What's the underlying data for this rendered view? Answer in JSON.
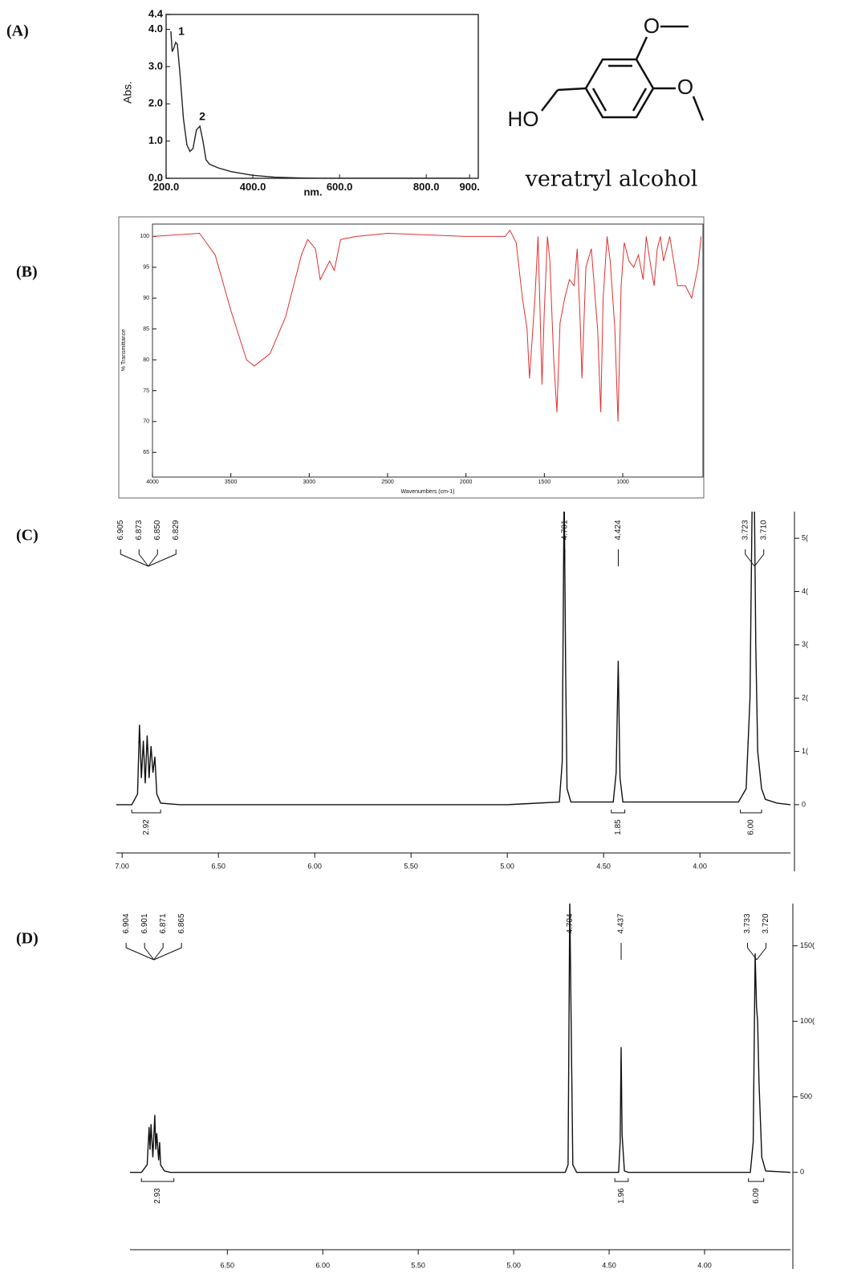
{
  "panel_labels": [
    "(A)",
    "(B)",
    "(C)",
    "(D)"
  ],
  "structure": {
    "labels": [
      "HO",
      "O",
      "O"
    ],
    "name": "veratryl alcohol"
  },
  "chart_data": [
    {
      "type": "line",
      "frame": "box",
      "x_label": "nm.",
      "y_label": "Abs.",
      "color": "#222222",
      "annotations": [
        "1",
        "2"
      ],
      "xlim": [
        200,
        920
      ],
      "ylim": [
        0,
        4.4
      ],
      "xticks": [
        {
          "value": 200,
          "label": "200.0"
        },
        {
          "value": 400,
          "label": "400.0"
        },
        {
          "value": 600,
          "label": "600.0"
        },
        {
          "value": 800,
          "label": "800.0"
        },
        {
          "value": 900,
          "label": "900."
        }
      ],
      "yticks": [
        {
          "value": 0,
          "label": "0.0"
        },
        {
          "value": 1,
          "label": "1.0"
        },
        {
          "value": 2,
          "label": "2.0"
        },
        {
          "value": 3,
          "label": "3.0"
        },
        {
          "value": 4,
          "label": "4.0"
        },
        4.4
      ],
      "x": [
        211,
        214,
        218,
        222,
        226,
        232,
        240,
        248,
        255,
        262,
        270,
        278,
        285,
        292,
        300,
        320,
        350,
        400,
        450,
        500,
        550,
        900
      ],
      "values": [
        3.95,
        3.4,
        3.5,
        3.65,
        3.6,
        2.8,
        1.6,
        0.9,
        0.72,
        0.8,
        1.3,
        1.4,
        1.0,
        0.5,
        0.38,
        0.28,
        0.18,
        0.08,
        0.03,
        0.01,
        0,
        0
      ]
    },
    {
      "type": "line",
      "frame": "box",
      "x_label": "Wavenumbers (cm-1)",
      "y_label": "% Transmittance",
      "color": "#e03030",
      "xlim": [
        4000,
        488
      ],
      "ylim": [
        61,
        102
      ],
      "xticks": [
        4000,
        3500,
        3000,
        2500,
        2000,
        1500,
        1000
      ],
      "yticks": [
        65,
        70,
        75,
        80,
        85,
        90,
        95,
        100
      ],
      "x": [
        4000,
        3700,
        3600,
        3500,
        3400,
        3350,
        3250,
        3150,
        3050,
        3010,
        2960,
        2930,
        2900,
        2870,
        2840,
        2800,
        2700,
        2500,
        2000,
        1750,
        1720,
        1680,
        1640,
        1610,
        1595,
        1560,
        1540,
        1515,
        1500,
        1480,
        1465,
        1440,
        1420,
        1400,
        1370,
        1340,
        1310,
        1290,
        1270,
        1260,
        1235,
        1200,
        1160,
        1140,
        1125,
        1100,
        1080,
        1050,
        1030,
        1010,
        990,
        960,
        930,
        900,
        870,
        850,
        820,
        800,
        780,
        760,
        740,
        700,
        650,
        600,
        560,
        520,
        500
      ],
      "values": [
        100,
        100.5,
        97,
        88,
        80,
        79,
        81,
        87,
        97,
        99.5,
        98,
        93,
        94.5,
        96,
        94.5,
        99.5,
        100,
        100.5,
        100,
        100,
        101,
        99,
        90,
        85,
        77,
        90,
        100,
        76,
        88,
        100,
        96,
        80,
        71.5,
        86,
        90,
        93,
        92,
        98,
        85,
        77,
        95,
        98,
        85,
        71.5,
        90,
        100,
        96,
        85,
        70,
        92,
        99,
        96,
        95,
        97,
        93,
        100,
        95,
        92,
        98,
        100,
        96,
        100,
        92,
        92,
        90,
        95,
        100
      ]
    },
    {
      "type": "nmr",
      "frame": "axes",
      "color": "#111111",
      "peak_labels": [
        "6.905",
        "6.873",
        "6.850",
        "6.829",
        "4.701",
        "4.424",
        "3.723",
        "3.710"
      ],
      "integrals": [
        {
          "label": "2.92",
          "from": 6.95,
          "to": 6.8
        },
        {
          "label": "1.85",
          "from": 4.46,
          "to": 4.39
        },
        {
          "label": "6.00",
          "from": 3.79,
          "to": 3.68
        }
      ],
      "xlim": [
        7.03,
        3.53
      ],
      "ylim": [
        -8,
        55
      ],
      "xticks": [
        {
          "value": 7,
          "label": "7.00"
        },
        {
          "value": 6.5,
          "label": "6.50"
        },
        {
          "value": 6,
          "label": "6.00"
        },
        {
          "value": 5.5,
          "label": "5.50"
        },
        {
          "value": 5,
          "label": "5.00"
        },
        {
          "value": 4.5,
          "label": "4.50"
        },
        {
          "value": 4,
          "label": "4.00"
        }
      ],
      "yticks": [
        0,
        {
          "value": 10,
          "label": "1("
        },
        {
          "value": 20,
          "label": "2("
        },
        {
          "value": 30,
          "label": "3("
        },
        {
          "value": 40,
          "label": "4("
        },
        {
          "value": 50,
          "label": "5("
        }
      ],
      "x": [
        7.03,
        6.95,
        6.92,
        6.91,
        6.9,
        6.89,
        6.88,
        6.87,
        6.86,
        6.85,
        6.84,
        6.83,
        6.82,
        6.8,
        6.7,
        5.0,
        4.73,
        4.715,
        4.705,
        4.697,
        4.69,
        4.67,
        4.45,
        4.435,
        4.424,
        4.415,
        4.4,
        3.8,
        3.76,
        3.74,
        3.728,
        3.718,
        3.71,
        3.7,
        3.68,
        3.66,
        3.6,
        3.53
      ],
      "values": [
        0,
        0,
        2,
        15,
        5,
        12,
        4,
        13,
        5,
        11,
        6,
        9,
        2,
        0.3,
        0,
        0,
        0.5,
        8,
        60,
        25,
        3,
        0.5,
        0.5,
        6,
        27,
        5,
        0.5,
        0.5,
        3,
        20,
        60,
        60,
        30,
        10,
        3,
        1,
        0.3,
        0
      ]
    },
    {
      "type": "nmr",
      "frame": "axes",
      "color": "#111111",
      "peak_labels": [
        "6.904",
        "6.901",
        "6.871",
        "6.865",
        "4.704",
        "4.437",
        "3.733",
        "3.720"
      ],
      "integrals": [
        {
          "label": "2.93",
          "from": 6.95,
          "to": 6.78
        },
        {
          "label": "1.96",
          "from": 4.47,
          "to": 4.4
        },
        {
          "label": "6.09",
          "from": 3.77,
          "to": 3.69
        }
      ],
      "xlim": [
        7.01,
        3.55
      ],
      "ylim": [
        -480,
        1780
      ],
      "xticks": [
        {
          "value": 6.5,
          "label": "6.50"
        },
        {
          "value": 6,
          "label": "6.00"
        },
        {
          "value": 5.5,
          "label": "5.50"
        },
        {
          "value": 5,
          "label": "5.00"
        },
        {
          "value": 4.5,
          "label": "4.50"
        },
        {
          "value": 4,
          "label": "4.00"
        }
      ],
      "yticks": [
        0,
        500,
        {
          "value": 1000,
          "label": "100("
        },
        {
          "value": 1500,
          "label": "150("
        }
      ],
      "x": [
        7.01,
        6.95,
        6.92,
        6.91,
        6.905,
        6.9,
        6.89,
        6.88,
        6.875,
        6.87,
        6.86,
        6.855,
        6.85,
        6.83,
        6.8,
        4.73,
        4.715,
        4.706,
        4.7,
        4.69,
        4.67,
        4.45,
        4.442,
        4.437,
        4.432,
        4.42,
        4.4,
        3.76,
        3.745,
        3.735,
        3.728,
        3.722,
        3.715,
        3.7,
        3.68,
        3.55
      ],
      "values": [
        0,
        0,
        50,
        300,
        150,
        320,
        100,
        380,
        150,
        260,
        80,
        200,
        50,
        10,
        0,
        0,
        50,
        1800,
        1100,
        50,
        0,
        0,
        200,
        830,
        250,
        10,
        0,
        0,
        200,
        1450,
        1100,
        1000,
        600,
        100,
        10,
        0
      ]
    }
  ]
}
